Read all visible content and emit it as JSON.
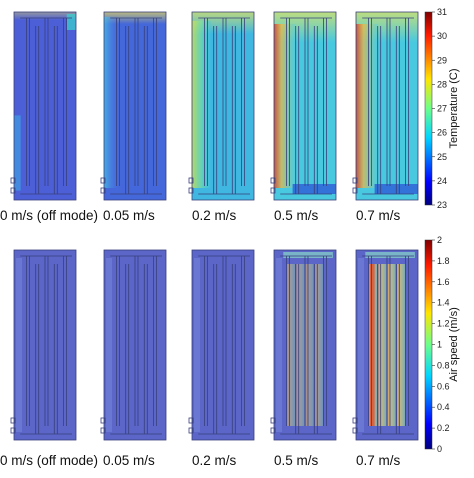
{
  "rows": [
    {
      "id": "temperature",
      "panels": [
        {
          "label": "0 m/s (off mode)",
          "speed": 0
        },
        {
          "label": "0.05 m/s",
          "speed": 0.05
        },
        {
          "label": "0.2 m/s",
          "speed": 0.2
        },
        {
          "label": "0.5 m/s",
          "speed": 0.5
        },
        {
          "label": "0.7 m/s",
          "speed": 0.7
        }
      ],
      "colorbar": {
        "title": "Temperature (C)",
        "ticks": [
          "31",
          "30",
          "29",
          "28",
          "27",
          "26",
          "25",
          "24",
          "23"
        ],
        "min": 23,
        "max": 31
      }
    },
    {
      "id": "airspeed",
      "panels": [
        {
          "label": "0 m/s (off mode)",
          "speed": 0
        },
        {
          "label": "0.05 m/s",
          "speed": 0.05
        },
        {
          "label": "0.2 m/s",
          "speed": 0.2
        },
        {
          "label": "0.5 m/s",
          "speed": 0.5
        },
        {
          "label": "0.7 m/s",
          "speed": 0.7
        }
      ],
      "colorbar": {
        "title": "Air speed (m/s)",
        "ticks": [
          "2",
          "1.8",
          "1.6",
          "1.4",
          "1.2",
          "1",
          "0.8",
          "0.6",
          "0.4",
          "0.2",
          "0"
        ],
        "min": 0,
        "max": 2
      }
    }
  ],
  "colormap": "jet"
}
